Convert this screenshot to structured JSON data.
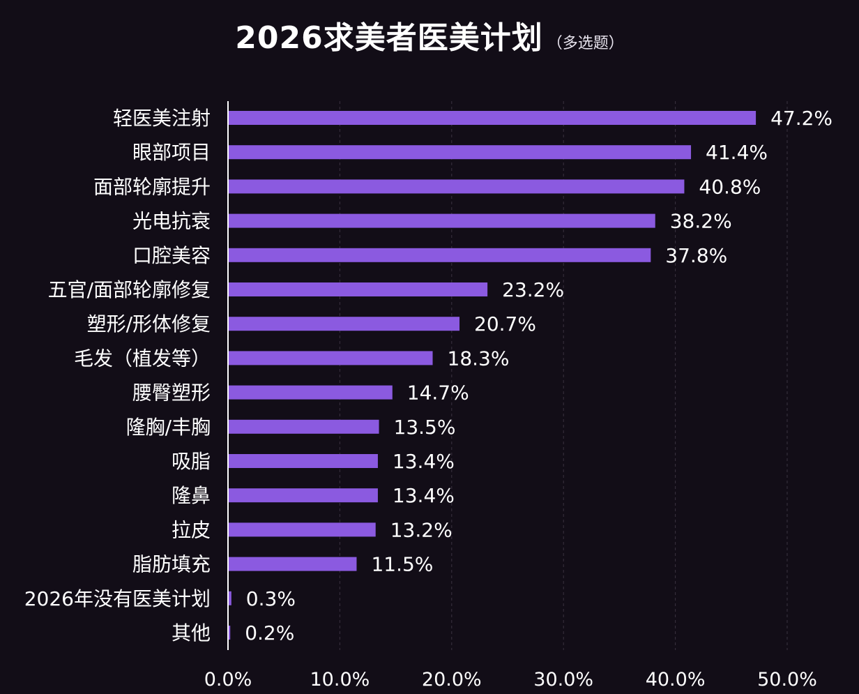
{
  "header": {
    "title": "2026求美者医美计划",
    "subtitle": "（多选题）"
  },
  "chart_data": {
    "type": "bar",
    "orientation": "horizontal",
    "title": "2026求美者医美计划",
    "subtitle": "（多选题）",
    "xlabel": "",
    "ylabel": "",
    "xlim": [
      0,
      50
    ],
    "xticks": [
      "0.0%",
      "10.0%",
      "20.0%",
      "30.0%",
      "40.0%",
      "50.0%"
    ],
    "grid": "vertical",
    "categories": [
      "轻医美注射",
      "眼部项目",
      "面部轮廓提升",
      "光电抗衰",
      "口腔美容",
      "五官/面部轮廓修复",
      "塑形/形体修复",
      "毛发（植发等）",
      "腰臀塑形",
      "隆胸/丰胸",
      "吸脂",
      "隆鼻",
      "拉皮",
      "脂肪填充",
      "2026年没有医美计划",
      "其他"
    ],
    "values": [
      47.2,
      41.4,
      40.8,
      38.2,
      37.8,
      23.2,
      20.7,
      18.3,
      14.7,
      13.5,
      13.4,
      13.4,
      13.2,
      11.5,
      0.3,
      0.2
    ],
    "value_labels": [
      "47.2%",
      "41.4%",
      "40.8%",
      "38.2%",
      "37.8%",
      "23.2%",
      "20.7%",
      "18.3%",
      "14.7%",
      "13.5%",
      "13.4%",
      "13.4%",
      "13.2%",
      "11.5%",
      "0.3%",
      "0.2%"
    ],
    "bar_color": "#8b5ae0",
    "background_color": "#120d17"
  }
}
